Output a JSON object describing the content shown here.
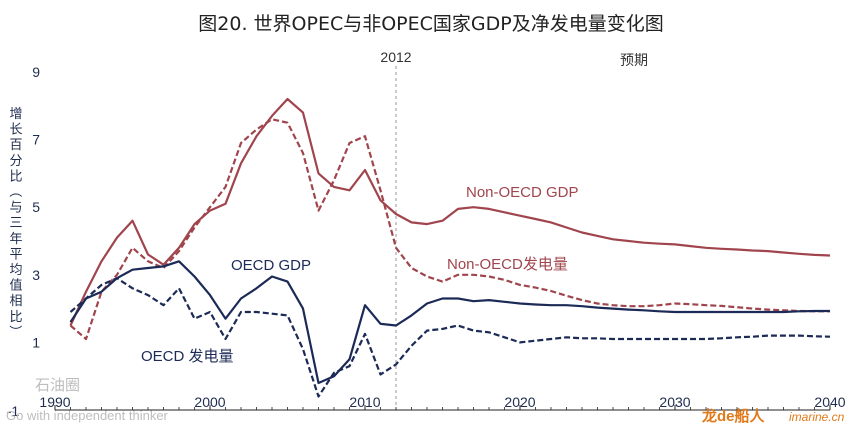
{
  "chart_data": {
    "type": "line",
    "title": "图20. 世界OPEC与非OPEC国家GDP及净发电量变化图",
    "ylabel": "增长百分比（与三年平均值相比）",
    "xlabel": "",
    "xlim": [
      1990,
      2040
    ],
    "ylim": [
      -1,
      9
    ],
    "x_ticks": [
      1990,
      2000,
      2010,
      2020,
      2030,
      2040
    ],
    "y_ticks": [
      1,
      3,
      5,
      7,
      9
    ],
    "x_tick_labels": [
      "1990",
      "2000",
      "2010",
      "2020",
      "2030",
      "2040"
    ],
    "y_tick_labels": [
      "1",
      "3",
      "5",
      "7",
      "9"
    ],
    "y_bottom_label": "-1",
    "marker_line": {
      "x": 2012,
      "label": "2012"
    },
    "forecast_label": "预期",
    "series": [
      {
        "name": "Non-OECD GDP",
        "color": "#a0454d",
        "dash": "solid",
        "x": [
          1991,
          1992,
          1993,
          1994,
          1995,
          1996,
          1997,
          1998,
          1999,
          2000,
          2001,
          2002,
          2003,
          2004,
          2005,
          2006,
          2007,
          2008,
          2009,
          2010,
          2011,
          2012,
          2013,
          2014,
          2015,
          2016,
          2017,
          2018,
          2019,
          2020,
          2021,
          2022,
          2023,
          2024,
          2025,
          2026,
          2027,
          2028,
          2029,
          2030,
          2031,
          2032,
          2033,
          2034,
          2035,
          2036,
          2037,
          2038,
          2039,
          2040
        ],
        "values": [
          1.5,
          2.5,
          3.4,
          4.1,
          4.6,
          3.6,
          3.3,
          3.8,
          4.5,
          4.9,
          5.1,
          6.3,
          7.1,
          7.7,
          8.2,
          7.8,
          6.0,
          5.6,
          5.5,
          6.1,
          5.2,
          4.8,
          4.55,
          4.5,
          4.6,
          4.95,
          5.0,
          4.95,
          4.85,
          4.75,
          4.65,
          4.55,
          4.4,
          4.25,
          4.15,
          4.05,
          4.0,
          3.95,
          3.92,
          3.9,
          3.85,
          3.8,
          3.77,
          3.75,
          3.72,
          3.7,
          3.66,
          3.62,
          3.59,
          3.57
        ]
      },
      {
        "name": "Non-OECD发电量",
        "color": "#a0454d",
        "dash": "dashed",
        "x": [
          1991,
          1992,
          1993,
          1994,
          1995,
          1996,
          1997,
          1998,
          1999,
          2000,
          2001,
          2002,
          2003,
          2004,
          2005,
          2006,
          2007,
          2008,
          2009,
          2010,
          2011,
          2012,
          2013,
          2014,
          2015,
          2016,
          2017,
          2018,
          2019,
          2020,
          2021,
          2022,
          2023,
          2024,
          2025,
          2026,
          2027,
          2028,
          2029,
          2030,
          2031,
          2032,
          2033,
          2034,
          2035,
          2036,
          2037,
          2038,
          2039,
          2040
        ],
        "values": [
          1.5,
          1.1,
          2.5,
          3.0,
          3.8,
          3.4,
          3.2,
          3.7,
          4.4,
          5.0,
          5.6,
          6.9,
          7.3,
          7.6,
          7.5,
          6.6,
          4.9,
          5.8,
          6.9,
          7.1,
          5.5,
          3.8,
          3.2,
          2.95,
          2.8,
          3.0,
          3.0,
          2.95,
          2.85,
          2.7,
          2.62,
          2.52,
          2.38,
          2.25,
          2.15,
          2.1,
          2.07,
          2.07,
          2.1,
          2.15,
          2.13,
          2.1,
          2.08,
          2.04,
          2.0,
          1.97,
          1.95,
          1.93,
          1.92,
          1.92
        ]
      },
      {
        "name": "OECD GDP",
        "color": "#1b2a56",
        "dash": "solid",
        "x": [
          1991,
          1992,
          1993,
          1994,
          1995,
          1996,
          1997,
          1998,
          1999,
          2000,
          2001,
          2002,
          2003,
          2004,
          2005,
          2006,
          2007,
          2008,
          2009,
          2010,
          2011,
          2012,
          2013,
          2014,
          2015,
          2016,
          2017,
          2018,
          2019,
          2020,
          2021,
          2022,
          2023,
          2024,
          2025,
          2026,
          2027,
          2028,
          2029,
          2030,
          2031,
          2032,
          2033,
          2034,
          2035,
          2036,
          2037,
          2038,
          2039,
          2040
        ],
        "values": [
          1.6,
          2.3,
          2.5,
          2.9,
          3.15,
          3.2,
          3.25,
          3.4,
          2.95,
          2.4,
          1.7,
          2.3,
          2.6,
          2.95,
          2.8,
          2.0,
          -0.2,
          0.0,
          0.5,
          2.1,
          1.55,
          1.5,
          1.8,
          2.15,
          2.3,
          2.3,
          2.22,
          2.25,
          2.2,
          2.15,
          2.12,
          2.1,
          2.1,
          2.07,
          2.03,
          2.0,
          1.97,
          1.95,
          1.92,
          1.9,
          1.9,
          1.9,
          1.9,
          1.9,
          1.9,
          1.9,
          1.9,
          1.92,
          1.93,
          1.93
        ]
      },
      {
        "name": "OECD 发电量",
        "color": "#1b2a56",
        "dash": "dashed",
        "x": [
          1991,
          1992,
          1993,
          1994,
          1995,
          1996,
          1997,
          1998,
          1999,
          2000,
          2001,
          2002,
          2003,
          2004,
          2005,
          2006,
          2007,
          2008,
          2009,
          2010,
          2011,
          2012,
          2013,
          2014,
          2015,
          2016,
          2017,
          2018,
          2019,
          2020,
          2021,
          2022,
          2023,
          2024,
          2025,
          2026,
          2027,
          2028,
          2029,
          2030,
          2031,
          2032,
          2033,
          2034,
          2035,
          2036,
          2037,
          2038,
          2039,
          2040
        ],
        "values": [
          1.9,
          2.3,
          2.7,
          2.9,
          2.6,
          2.4,
          2.1,
          2.6,
          1.7,
          1.9,
          1.1,
          1.9,
          1.9,
          1.85,
          1.8,
          0.8,
          -0.6,
          0.1,
          0.3,
          1.25,
          0.05,
          0.35,
          0.9,
          1.35,
          1.4,
          1.5,
          1.35,
          1.3,
          1.15,
          1.0,
          1.05,
          1.1,
          1.15,
          1.12,
          1.12,
          1.1,
          1.1,
          1.1,
          1.1,
          1.1,
          1.1,
          1.1,
          1.12,
          1.15,
          1.17,
          1.2,
          1.2,
          1.2,
          1.18,
          1.17
        ]
      }
    ],
    "annotations": [
      "Non-OECD GDP",
      "Non-OECD发电量",
      "OECD GDP",
      "OECD 发电量"
    ]
  },
  "watermarks": {
    "left_text": "石油圈",
    "left_sub": "Go with independent thinker",
    "right_brand": "龙de船人",
    "right_site": "imarine.cn"
  }
}
